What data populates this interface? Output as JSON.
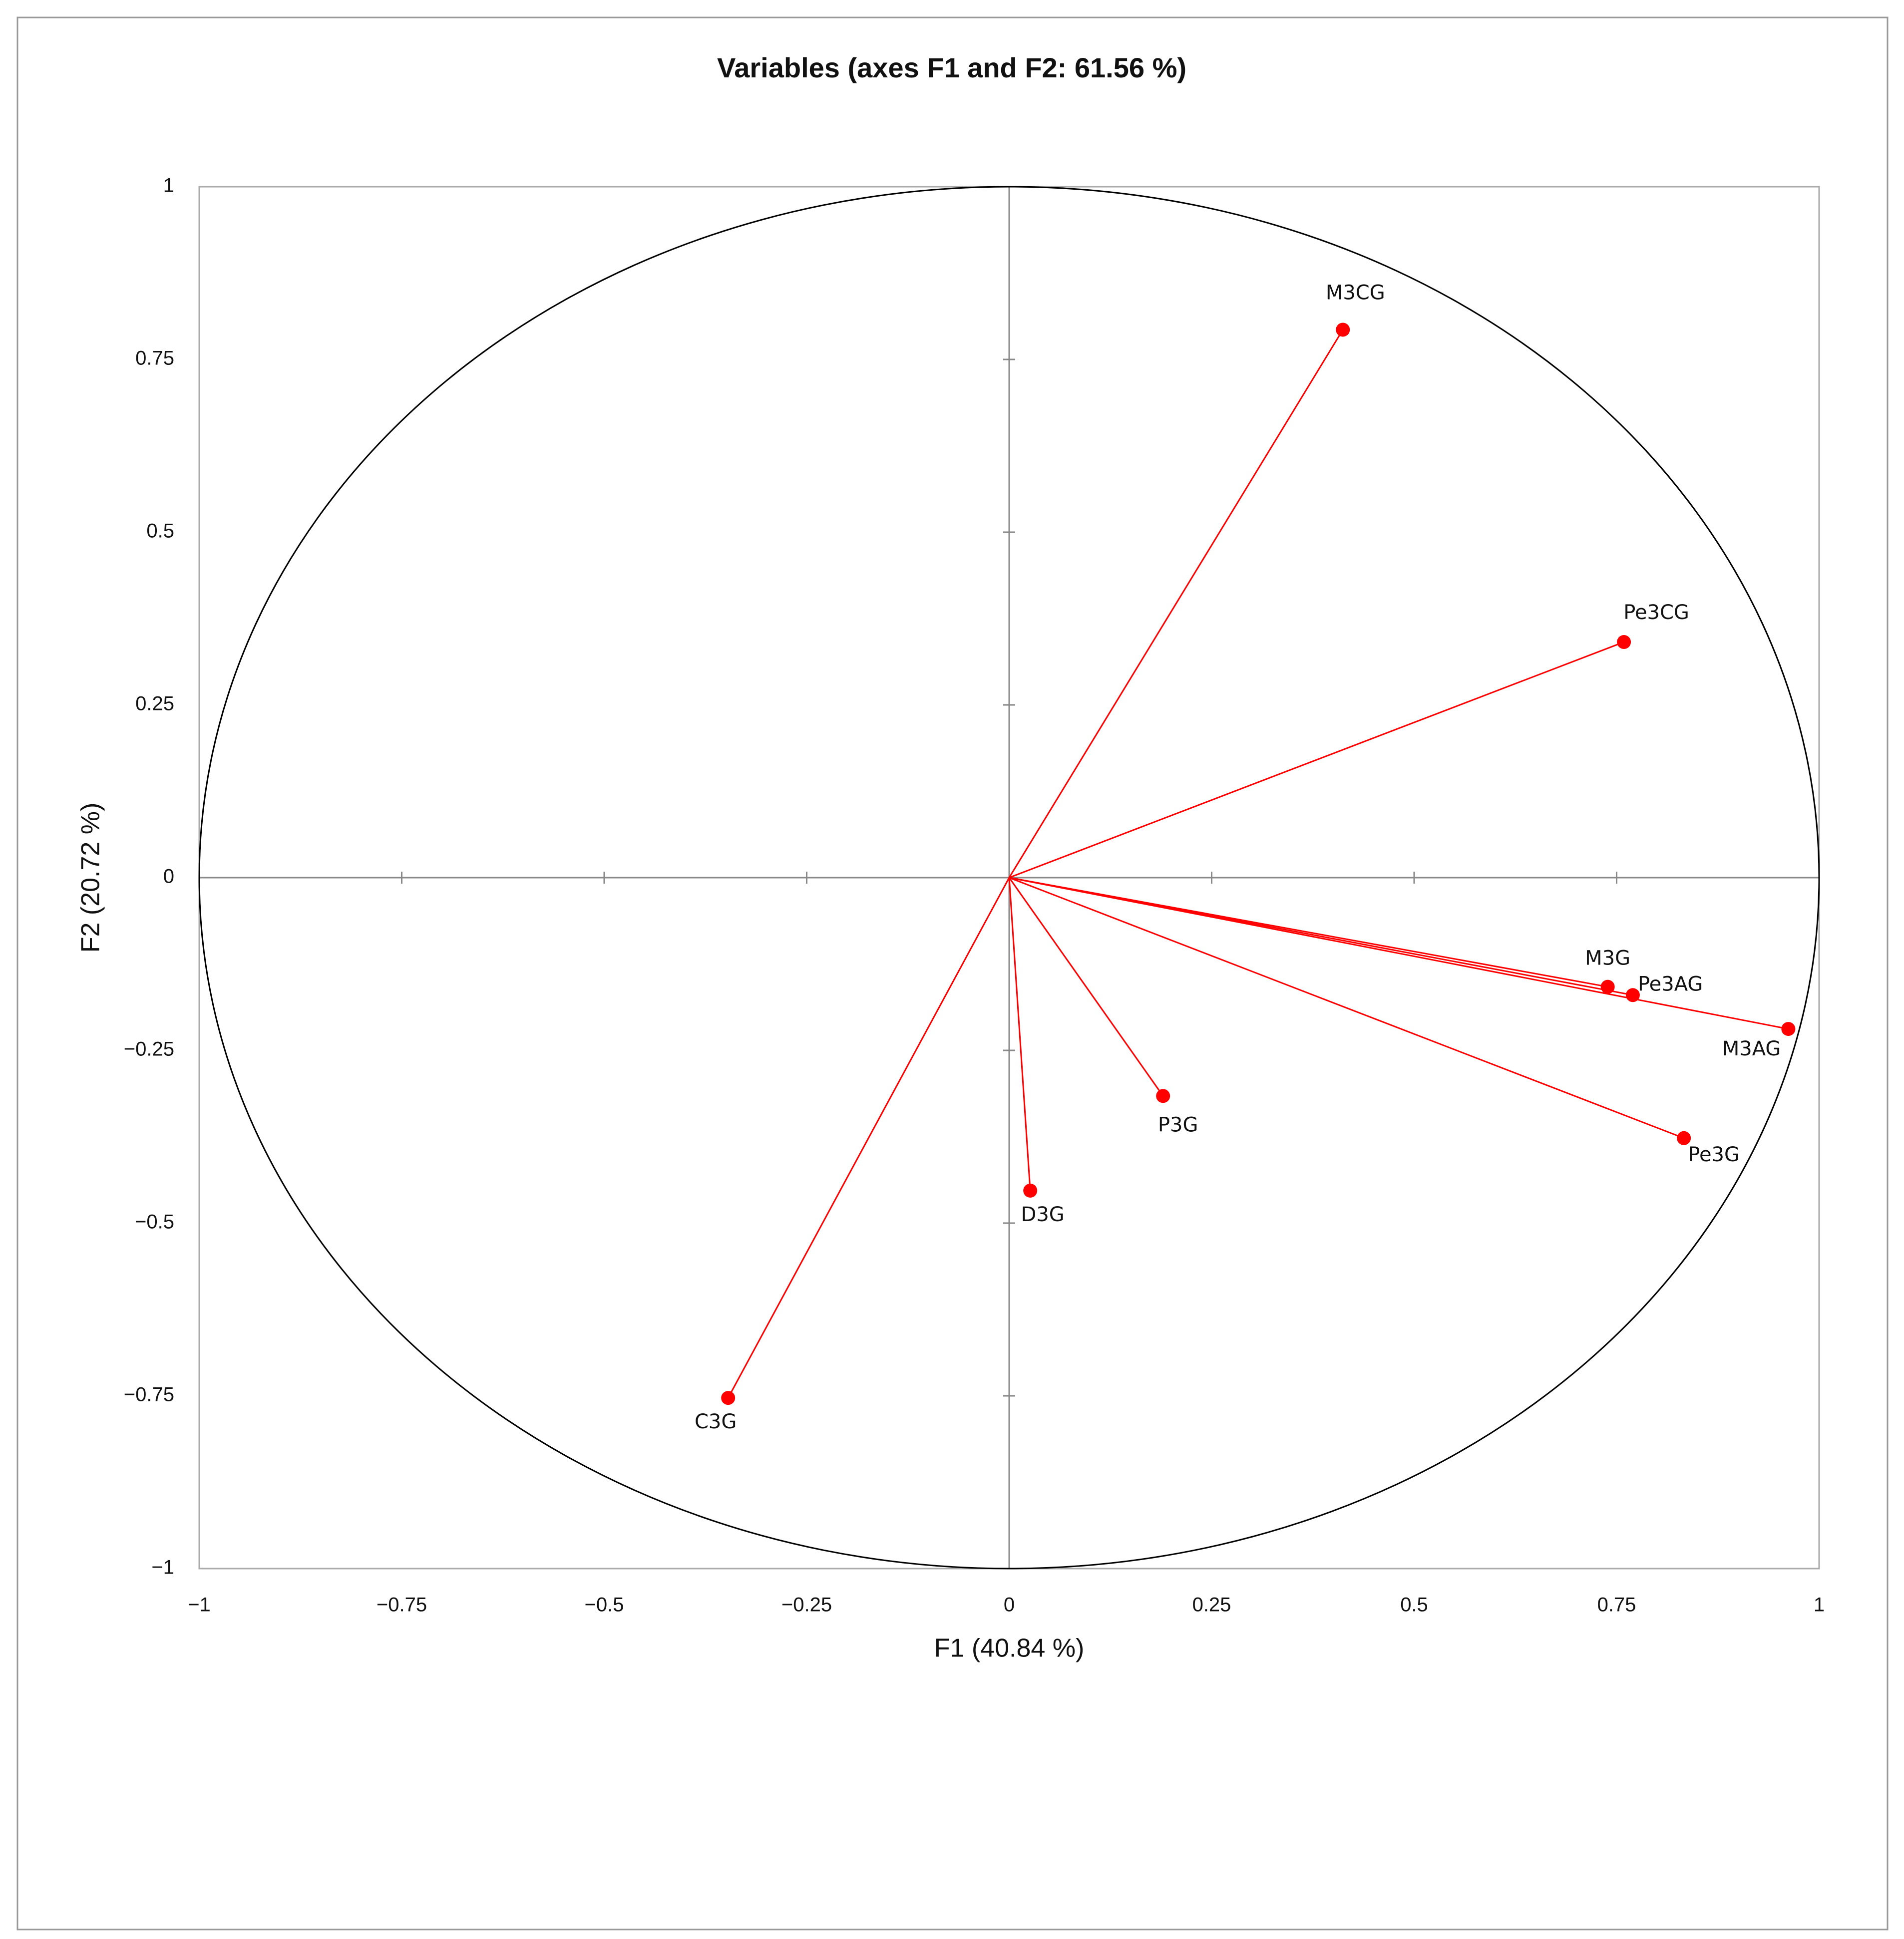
{
  "chart_data": {
    "type": "scatter",
    "title": "Variables (axes F1 and F2: 61.56 %)",
    "x_label": "F1 (40.84 %)",
    "y_label": "F2 (20.72 %)",
    "labels": [
      "M3CG",
      "Pe3CG",
      "M3G",
      "Pe3AG",
      "M3AG",
      "Pe3G",
      "P3G",
      "D3G",
      "C3G"
    ],
    "x": [
      0.412,
      0.759,
      0.739,
      0.77,
      0.962,
      0.833,
      0.19,
      0.026,
      -0.347
    ],
    "y": [
      0.793,
      0.341,
      -0.158,
      -0.17,
      -0.219,
      -0.377,
      -0.316,
      -0.453,
      -0.753
    ],
    "color": "#ff0000",
    "xlim": [
      -1,
      1
    ],
    "ylim": [
      -1,
      1
    ],
    "xticks": [
      {
        "value": -1,
        "label": "−1"
      },
      {
        "value": -0.75,
        "label": "−0.75"
      },
      {
        "value": -0.5,
        "label": "−0.5"
      },
      {
        "value": -0.25,
        "label": "−0.25"
      },
      0,
      0.25,
      0.5,
      0.75,
      1
    ],
    "yticks": [
      {
        "value": -1,
        "label": "−1"
      },
      {
        "value": -0.75,
        "label": "−0.75"
      },
      {
        "value": -0.5,
        "label": "−0.5"
      },
      {
        "value": -0.25,
        "label": "−0.25"
      },
      0,
      0.25,
      0.5,
      0.75,
      1
    ],
    "correlation_circle": true
  }
}
